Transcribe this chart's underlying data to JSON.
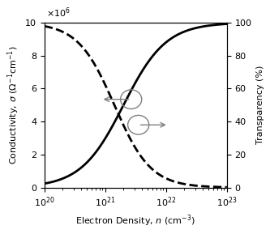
{
  "xlabel": "Electron Density, $n$ (cm$^{-3}$)",
  "ylabel_left": "Conductivity, $\\sigma$ ($\\Omega^{-1}$cm$^{-1}$)",
  "ylabel_right": "Transparency (%)",
  "xlim": [
    1e+20,
    1e+23
  ],
  "ylim_left": [
    0,
    10000000.0
  ],
  "ylim_right": [
    0,
    100
  ],
  "yticks_left": [
    0,
    2000000,
    4000000,
    6000000,
    8000000,
    10000000
  ],
  "ytick_labels_left": [
    "0",
    "2",
    "4",
    "6",
    "8",
    "10"
  ],
  "yticks_right": [
    0,
    20,
    40,
    60,
    80,
    100
  ],
  "conductivity_n0": 21.3,
  "conductivity_scale": 0.35,
  "transparency_n0": 21.15,
  "transparency_scale": 0.3,
  "line_color": "#000000",
  "linewidth": 2.0,
  "background_color": "#ffffff"
}
